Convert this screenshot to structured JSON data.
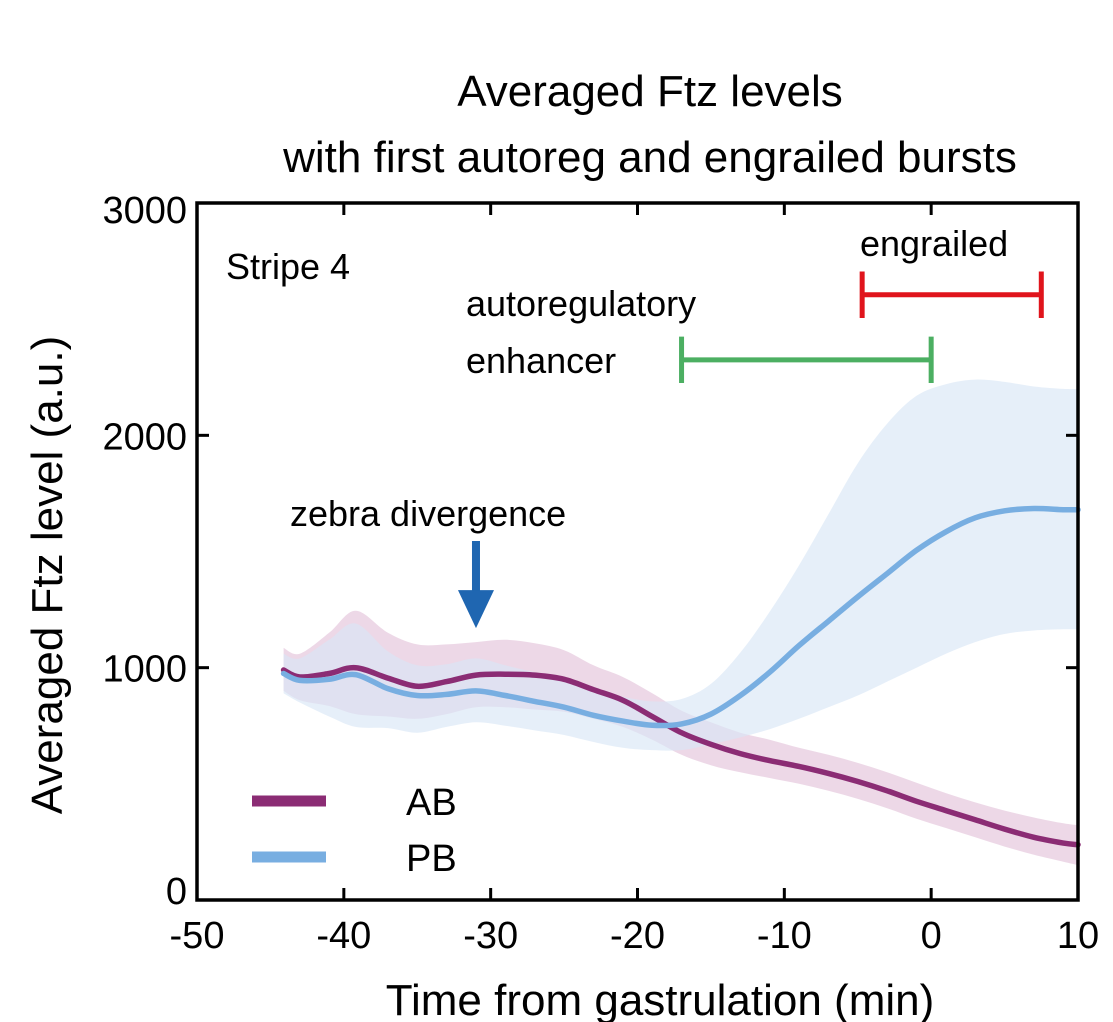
{
  "chart_data": {
    "type": "line",
    "title": [
      "Averaged Ftz levels",
      "with first autoreg and engrailed bursts"
    ],
    "xlabel": "Time from gastrulation (min)",
    "ylabel": "Averaged Ftz level (a.u.)",
    "xlim": [
      -50,
      10
    ],
    "ylim": [
      0,
      3000
    ],
    "xticks": [
      -50,
      -40,
      -30,
      -20,
      -10,
      0,
      10
    ],
    "yticks": [
      0,
      1000,
      2000,
      3000
    ],
    "xtick_labels": [
      "-50",
      "-40",
      "-30",
      "-20",
      "-10",
      "0",
      "10"
    ],
    "ytick_labels": [
      "0",
      "1000",
      "2000",
      "3000"
    ],
    "grid": false,
    "legend_position": "bottom-left",
    "series": [
      {
        "name": "AB",
        "color": "#8b2c74",
        "band_color": "#e3c3da",
        "x": [
          -44.1,
          -43,
          -41,
          -39.2,
          -37,
          -35,
          -33,
          -31,
          -29,
          -27,
          -25,
          -23,
          -21,
          -19,
          -17,
          -15,
          -13,
          -11,
          -9,
          -7,
          -5,
          -3,
          -1,
          1,
          3,
          5,
          7,
          9,
          10
        ],
        "y": [
          990,
          960,
          975,
          1000,
          955,
          920,
          940,
          968,
          972,
          968,
          950,
          905,
          860,
          790,
          720,
          670,
          630,
          600,
          575,
          545,
          510,
          470,
          425,
          385,
          345,
          305,
          270,
          245,
          238
        ],
        "upper": [
          1085,
          1060,
          1150,
          1245,
          1150,
          1100,
          1100,
          1110,
          1120,
          1105,
          1075,
          1010,
          960,
          890,
          815,
          765,
          720,
          690,
          655,
          625,
          590,
          550,
          505,
          460,
          420,
          385,
          355,
          330,
          322
        ],
        "lower": [
          900,
          860,
          835,
          800,
          790,
          780,
          800,
          830,
          830,
          820,
          810,
          780,
          745,
          690,
          625,
          580,
          550,
          525,
          500,
          470,
          435,
          395,
          350,
          310,
          270,
          230,
          195,
          165,
          150
        ]
      },
      {
        "name": "PB",
        "color": "#78aee1",
        "band_color": "#d8e7f6",
        "x": [
          -44.1,
          -43,
          -41,
          -39.2,
          -37,
          -35,
          -33,
          -31,
          -29,
          -27,
          -25,
          -23,
          -21,
          -19,
          -17,
          -15,
          -13,
          -11,
          -9,
          -7,
          -5,
          -3,
          -1,
          1,
          3,
          5,
          7,
          9,
          10
        ],
        "y": [
          975,
          945,
          950,
          970,
          910,
          880,
          885,
          900,
          880,
          855,
          830,
          795,
          770,
          752,
          758,
          800,
          880,
          980,
          1095,
          1200,
          1305,
          1405,
          1505,
          1585,
          1645,
          1675,
          1685,
          1680,
          1680
        ],
        "upper": [
          1060,
          1040,
          1120,
          1190,
          1070,
          1010,
          1015,
          1040,
          1010,
          980,
          950,
          905,
          875,
          855,
          865,
          930,
          1065,
          1240,
          1440,
          1660,
          1880,
          2050,
          2170,
          2220,
          2240,
          2230,
          2210,
          2200,
          2200
        ],
        "lower": [
          890,
          850,
          790,
          745,
          740,
          720,
          745,
          765,
          750,
          730,
          710,
          680,
          655,
          645,
          645,
          670,
          700,
          735,
          780,
          830,
          880,
          940,
          1000,
          1060,
          1110,
          1145,
          1160,
          1165,
          1165
        ]
      }
    ],
    "annotations": {
      "stripe_label": "Stripe 4",
      "zebra_label": "zebra divergence",
      "zebra_arrow": {
        "x": -31,
        "y_top": 1545,
        "y_tip": 1170,
        "color": "#1f66b1"
      },
      "autoreg_label": [
        "autoregulatory",
        "enhancer"
      ],
      "autoreg_bar": {
        "x_start": -17,
        "x_end": 0,
        "y": 2325,
        "cap_half": 100,
        "color": "#4caf62"
      },
      "engrailed_label": "engrailed",
      "engrailed_bar": {
        "x_start": -4.7,
        "x_end": 7.5,
        "y": 2605,
        "cap_half": 100,
        "color": "#e0141c"
      }
    }
  }
}
